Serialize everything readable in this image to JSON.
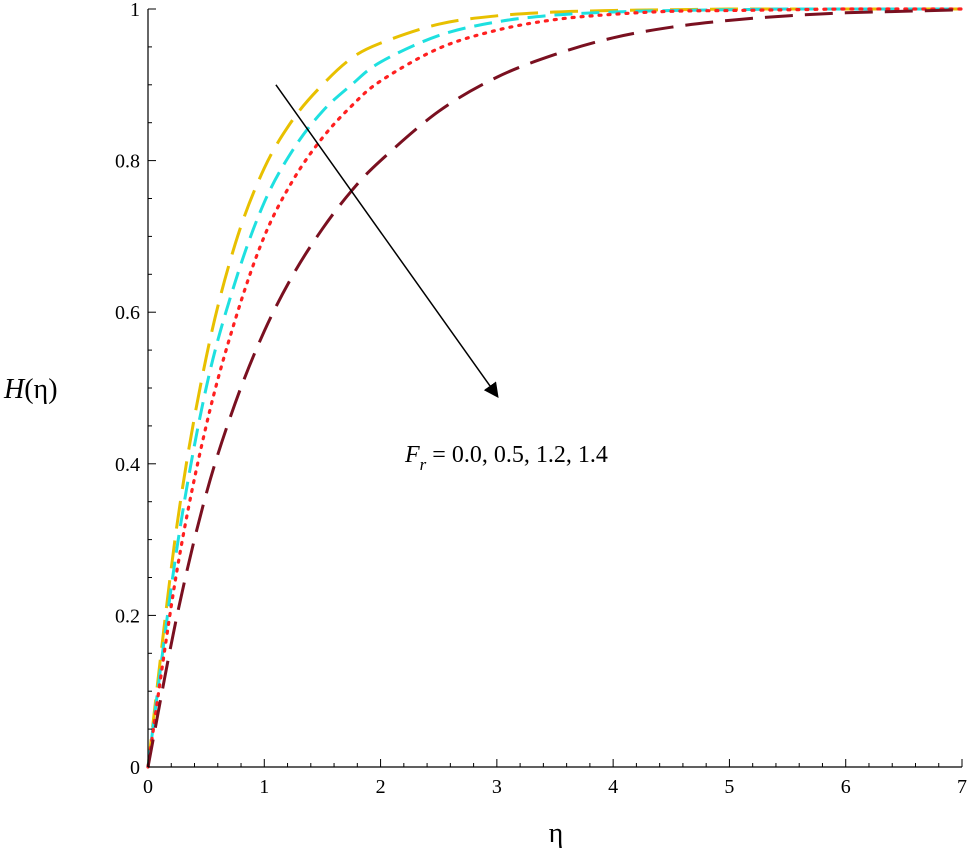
{
  "chart_data": {
    "type": "line",
    "xlabel": "η",
    "ylabel": "H(η)",
    "ylabel_var": "H",
    "ylabel_arg": "(η)",
    "xlim": [
      0,
      7
    ],
    "ylim": [
      0,
      1
    ],
    "x_ticks": [
      "0",
      "1",
      "2",
      "3",
      "4",
      "5",
      "6",
      "7"
    ],
    "y_ticks": [
      "0",
      "0.2",
      "0.4",
      "0.6",
      "0.8",
      "1"
    ],
    "grid": false,
    "legend": "none",
    "annotation": {
      "var": "F",
      "sub": "r",
      "text": " = 0.0, 0.5, 1.2, 1.4",
      "arrow_from": [
        1.1,
        0.9
      ],
      "arrow_to": [
        3.0,
        0.49
      ]
    },
    "x": [
      0,
      0.25,
      0.5,
      0.75,
      1,
      1.25,
      1.5,
      1.75,
      2,
      2.5,
      3,
      3.5,
      4,
      4.5,
      5,
      5.5,
      6,
      6.5,
      7
    ],
    "series": [
      {
        "param": "0.0",
        "color": "#e8c000",
        "dash": "long-dash",
        "values": [
          0,
          0.32,
          0.54,
          0.69,
          0.79,
          0.855,
          0.9,
          0.935,
          0.955,
          0.98,
          0.991,
          0.996,
          0.998,
          0.999,
          1,
          1,
          1,
          1,
          1
        ]
      },
      {
        "param": "0.5",
        "color": "#1ee0e0",
        "dash": "dash",
        "values": [
          0,
          0.29,
          0.5,
          0.64,
          0.745,
          0.815,
          0.865,
          0.9,
          0.93,
          0.965,
          0.983,
          0.992,
          0.996,
          0.998,
          0.999,
          1,
          1,
          1,
          1
        ]
      },
      {
        "param": "1.2",
        "color": "#ff2020",
        "dash": "dot",
        "values": [
          0,
          0.26,
          0.45,
          0.59,
          0.7,
          0.775,
          0.83,
          0.872,
          0.905,
          0.948,
          0.972,
          0.986,
          0.993,
          0.997,
          0.998,
          0.999,
          1,
          1,
          1
        ]
      },
      {
        "param": "1.4",
        "color": "#7a1020",
        "dash": "long-dash",
        "values": [
          0,
          0.2,
          0.36,
          0.48,
          0.575,
          0.65,
          0.71,
          0.76,
          0.8,
          0.865,
          0.91,
          0.94,
          0.962,
          0.976,
          0.985,
          0.991,
          0.995,
          0.997,
          0.999
        ]
      }
    ]
  }
}
